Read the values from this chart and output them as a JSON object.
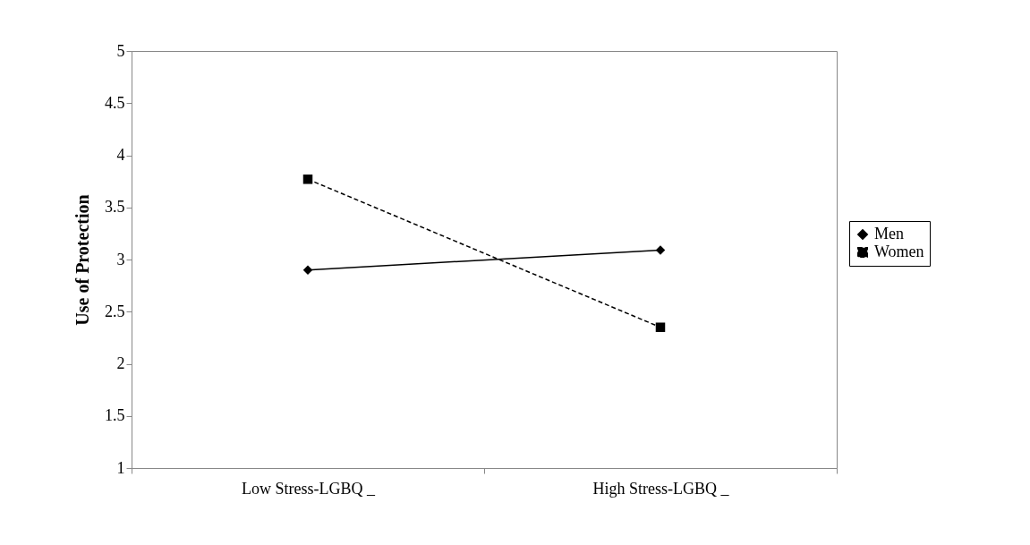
{
  "chart_data": {
    "type": "line",
    "ylabel": "Use of Protection",
    "categories": [
      "Low Stress-LGBQ _",
      "High Stress-LGBQ _"
    ],
    "ylim": [
      1,
      5
    ],
    "yticks": [
      1,
      1.5,
      2,
      2.5,
      3,
      3.5,
      4,
      4.5,
      5
    ],
    "grid": false,
    "legend": "right",
    "series": [
      {
        "name": "Men",
        "color": "#000000",
        "marker": "diamond",
        "line_style": "solid",
        "values": [
          2.9,
          3.09
        ]
      },
      {
        "name": "Women",
        "color": "#000000",
        "marker": "square",
        "line_style": "dashed",
        "values": [
          3.77,
          2.35
        ]
      }
    ]
  }
}
